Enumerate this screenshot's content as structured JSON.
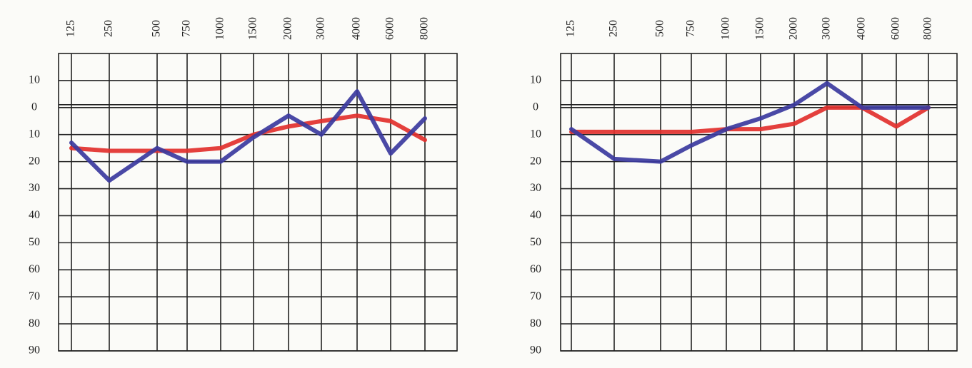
{
  "chart_data": [
    {
      "type": "line",
      "categories": [
        "125",
        "250",
        "500",
        "750",
        "1000",
        "1500",
        "2000",
        "3000",
        "4000",
        "6000",
        "8000"
      ],
      "series": [
        {
          "color": "#e2302c",
          "values": [
            15,
            16,
            16,
            16,
            15,
            10,
            7,
            5,
            3,
            5,
            12
          ]
        },
        {
          "color": "#3b3a9e",
          "values": [
            13,
            27,
            15,
            20,
            20,
            11,
            3,
            10,
            -6,
            17,
            4
          ]
        }
      ],
      "ylim": [
        90,
        -20
      ],
      "yticks": [
        {
          "value": -10,
          "label": "10"
        },
        0,
        10,
        20,
        30,
        40,
        50,
        60,
        70,
        80,
        90
      ],
      "grid": true
    },
    {
      "type": "line",
      "categories": [
        "125",
        "250",
        "500",
        "750",
        "1000",
        "1500",
        "2000",
        "3000",
        "4000",
        "6000",
        "8000"
      ],
      "series": [
        {
          "color": "#e2302c",
          "values": [
            9,
            9,
            9,
            9,
            8,
            8,
            6,
            0,
            0,
            7,
            0
          ]
        },
        {
          "color": "#3b3a9e",
          "values": [
            8,
            19,
            20,
            14,
            8,
            4,
            -1,
            -9,
            0,
            0,
            0
          ]
        }
      ],
      "ylim": [
        90,
        -20
      ],
      "yticks": [
        {
          "value": -10,
          "label": "10"
        },
        0,
        10,
        20,
        30,
        40,
        50,
        60,
        70,
        80,
        90
      ],
      "grid": true
    }
  ]
}
